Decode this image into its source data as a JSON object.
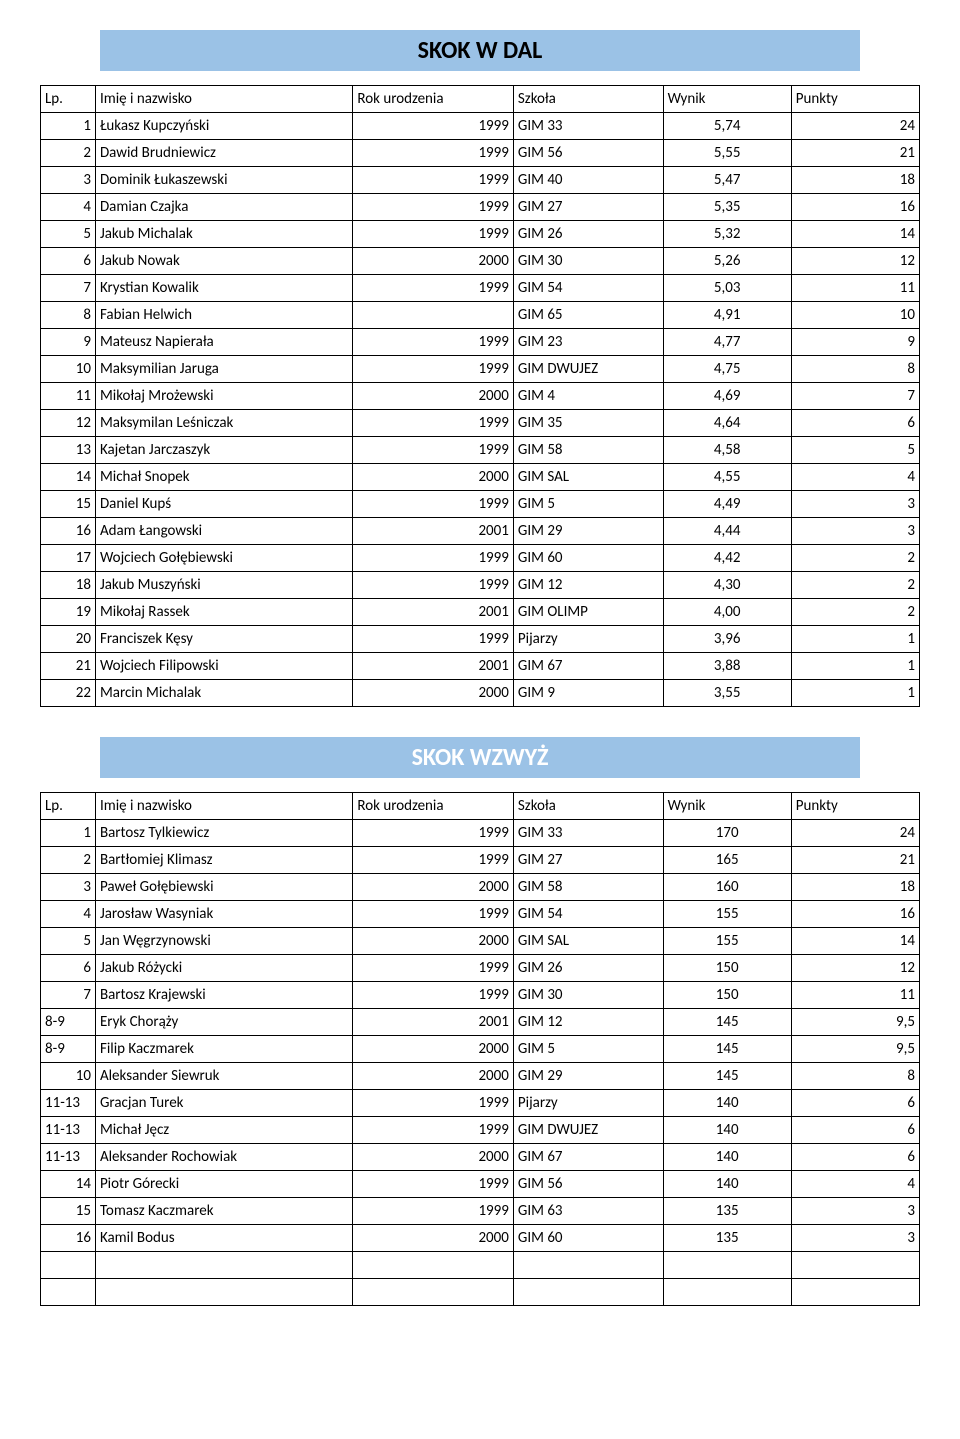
{
  "headers": {
    "lp": "Lp.",
    "name": "Imię i nazwisko",
    "year": "Rok urodzenia",
    "school": "Szkoła",
    "result": "Wynik",
    "points": "Punkty"
  },
  "sections": [
    {
      "title": "SKOK W DAL",
      "title_color": "#000000",
      "rows": [
        {
          "lp": "1",
          "lp_align": "right",
          "name": "Łukasz Kupczyński",
          "year": "1999",
          "school": "GIM 33",
          "result": "5,74",
          "points": "24"
        },
        {
          "lp": "2",
          "lp_align": "right",
          "name": "Dawid Brudniewicz",
          "year": "1999",
          "school": "GIM 56",
          "result": "5,55",
          "points": "21"
        },
        {
          "lp": "3",
          "lp_align": "right",
          "name": "Dominik Łukaszewski",
          "year": "1999",
          "school": "GIM 40",
          "result": "5,47",
          "points": "18"
        },
        {
          "lp": "4",
          "lp_align": "right",
          "name": "Damian Czajka",
          "year": "1999",
          "school": "GIM 27",
          "result": "5,35",
          "points": "16"
        },
        {
          "lp": "5",
          "lp_align": "right",
          "name": "Jakub Michalak",
          "year": "1999",
          "school": "GIM 26",
          "result": "5,32",
          "points": "14"
        },
        {
          "lp": "6",
          "lp_align": "right",
          "name": "Jakub Nowak",
          "year": "2000",
          "school": "GIM 30",
          "result": "5,26",
          "points": "12"
        },
        {
          "lp": "7",
          "lp_align": "right",
          "name": "Krystian Kowalik",
          "year": "1999",
          "school": "GIM 54",
          "result": "5,03",
          "points": "11"
        },
        {
          "lp": "8",
          "lp_align": "right",
          "name": "Fabian Helwich",
          "year": "",
          "school": "GIM 65",
          "result": "4,91",
          "points": "10"
        },
        {
          "lp": "9",
          "lp_align": "right",
          "name": "Mateusz Napierała",
          "year": "1999",
          "school": "GIM 23",
          "result": "4,77",
          "points": "9"
        },
        {
          "lp": "10",
          "lp_align": "right",
          "name": "Maksymilian Jaruga",
          "year": "1999",
          "school": "GIM DWUJEZ",
          "result": "4,75",
          "points": "8"
        },
        {
          "lp": "11",
          "lp_align": "right",
          "name": "Mikołaj Mrożewski",
          "year": "2000",
          "school": "GIM 4",
          "result": "4,69",
          "points": "7"
        },
        {
          "lp": "12",
          "lp_align": "right",
          "name": "Maksymilan Leśniczak",
          "year": "1999",
          "school": "GIM 35",
          "result": "4,64",
          "points": "6"
        },
        {
          "lp": "13",
          "lp_align": "right",
          "name": "Kajetan Jarczaszyk",
          "year": "1999",
          "school": "GIM 58",
          "result": "4,58",
          "points": "5"
        },
        {
          "lp": "14",
          "lp_align": "right",
          "name": "Michał Snopek",
          "year": "2000",
          "school": "GIM SAL",
          "result": "4,55",
          "points": "4"
        },
        {
          "lp": "15",
          "lp_align": "right",
          "name": "Daniel Kupś",
          "year": "1999",
          "school": "GIM 5",
          "result": "4,49",
          "points": "3"
        },
        {
          "lp": "16",
          "lp_align": "right",
          "name": "Adam Łangowski",
          "year": "2001",
          "school": "GIM 29",
          "result": "4,44",
          "points": "3"
        },
        {
          "lp": "17",
          "lp_align": "right",
          "name": "Wojciech Gołębiewski",
          "year": "1999",
          "school": "GIM 60",
          "result": "4,42",
          "points": "2"
        },
        {
          "lp": "18",
          "lp_align": "right",
          "name": "Jakub Muszyński",
          "year": "1999",
          "school": "GIM 12",
          "result": "4,30",
          "points": "2"
        },
        {
          "lp": "19",
          "lp_align": "right",
          "name": "Mikołaj Rassek",
          "year": "2001",
          "school": "GIM OLIMP",
          "result": "4,00",
          "points": "2"
        },
        {
          "lp": "20",
          "lp_align": "right",
          "name": "Franciszek Kęsy",
          "year": "1999",
          "school": "Pijarzy",
          "result": "3,96",
          "points": "1"
        },
        {
          "lp": "21",
          "lp_align": "right",
          "name": "Wojciech Filipowski",
          "year": "2001",
          "school": "GIM 67",
          "result": "3,88",
          "points": "1"
        },
        {
          "lp": "22",
          "lp_align": "right",
          "name": "Marcin Michalak",
          "year": "2000",
          "school": "GIM 9",
          "result": "3,55",
          "points": "1"
        }
      ],
      "empty_rows": 0
    },
    {
      "title": "SKOK WZWYŻ",
      "title_color": "#ffffff",
      "rows": [
        {
          "lp": "1",
          "lp_align": "right",
          "name": "Bartosz Tylkiewicz",
          "year": "1999",
          "school": "GIM 33",
          "result": "170",
          "points": "24"
        },
        {
          "lp": "2",
          "lp_align": "right",
          "name": "Bartłomiej Klimasz",
          "year": "1999",
          "school": "GIM 27",
          "result": "165",
          "points": "21"
        },
        {
          "lp": "3",
          "lp_align": "right",
          "name": "Paweł Gołębiewski",
          "year": "2000",
          "school": "GIM 58",
          "result": "160",
          "points": "18"
        },
        {
          "lp": "4",
          "lp_align": "right",
          "name": "Jarosław Wasyniak",
          "year": "1999",
          "school": "GIM 54",
          "result": "155",
          "points": "16"
        },
        {
          "lp": "5",
          "lp_align": "right",
          "name": "Jan Węgrzynowski",
          "year": "2000",
          "school": "GIM SAL",
          "result": "155",
          "points": "14"
        },
        {
          "lp": "6",
          "lp_align": "right",
          "name": "Jakub Różycki",
          "year": "1999",
          "school": "GIM 26",
          "result": "150",
          "points": "12"
        },
        {
          "lp": "7",
          "lp_align": "right",
          "name": "Bartosz Krajewski",
          "year": "1999",
          "school": "GIM 30",
          "result": "150",
          "points": "11"
        },
        {
          "lp": "8-9",
          "lp_align": "left",
          "name": "Eryk Chorąży",
          "year": "2001",
          "school": "GIM 12",
          "result": "145",
          "points": "9,5"
        },
        {
          "lp": "8-9",
          "lp_align": "left",
          "name": "Filip Kaczmarek",
          "year": "2000",
          "school": "GIM 5",
          "result": "145",
          "points": "9,5"
        },
        {
          "lp": "10",
          "lp_align": "right",
          "name": "Aleksander Siewruk",
          "year": "2000",
          "school": "GIM 29",
          "result": "145",
          "points": "8"
        },
        {
          "lp": "11-13",
          "lp_align": "left",
          "name": "Gracjan Turek",
          "year": "1999",
          "school": "Pijarzy",
          "result": "140",
          "points": "6"
        },
        {
          "lp": "11-13",
          "lp_align": "left",
          "name": "Michał Jęcz",
          "year": "1999",
          "school": "GIM DWUJEZ",
          "result": "140",
          "points": "6"
        },
        {
          "lp": "11-13",
          "lp_align": "left",
          "name": "Aleksander Rochowiak",
          "year": "2000",
          "school": "GIM 67",
          "result": "140",
          "points": "6"
        },
        {
          "lp": "14",
          "lp_align": "right",
          "name": "Piotr Górecki",
          "year": "1999",
          "school": "GIM 56",
          "result": "140",
          "points": "4"
        },
        {
          "lp": "15",
          "lp_align": "right",
          "name": "Tomasz Kaczmarek",
          "year": "1999",
          "school": "GIM 63",
          "result": "135",
          "points": "3"
        },
        {
          "lp": "16",
          "lp_align": "right",
          "name": "Kamil Bodus",
          "year": "2000",
          "school": "GIM 60",
          "result": "135",
          "points": "3"
        }
      ],
      "empty_rows": 2
    }
  ],
  "title_bar_bg": "#9bc2e6"
}
